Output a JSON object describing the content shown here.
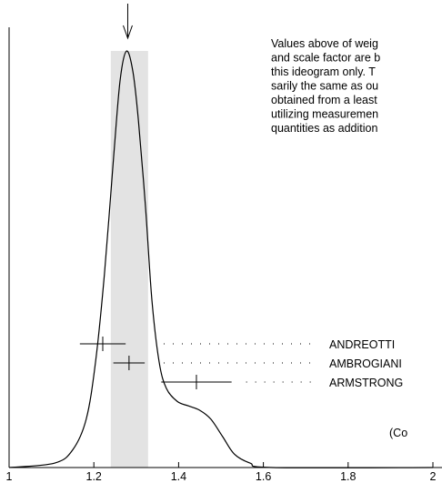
{
  "chart_data": {
    "type": "ideogram",
    "xlim": [
      1,
      2
    ],
    "xticks": [
      1,
      1.2,
      1.4,
      1.6,
      1.8,
      2
    ],
    "ylim": [
      0,
      1
    ],
    "band": [
      1.24,
      1.328
    ],
    "arrow_x": 1.28,
    "curve": {
      "x": [
        1.0,
        1.107,
        1.15,
        1.182,
        1.204,
        1.225,
        1.247,
        1.262,
        1.277,
        1.292,
        1.305,
        1.322,
        1.337,
        1.354,
        1.371,
        1.397,
        1.423,
        1.45,
        1.476,
        1.504,
        1.532,
        1.569,
        1.622,
        2.0
      ],
      "y": [
        0,
        0.01,
        0.04,
        0.11,
        0.24,
        0.44,
        0.71,
        0.88,
        0.946,
        0.9,
        0.79,
        0.59,
        0.38,
        0.24,
        0.18,
        0.15,
        0.14,
        0.13,
        0.11,
        0.07,
        0.03,
        0.01,
        0,
        0
      ]
    },
    "measurements": [
      {
        "name": "ANDREOTTI",
        "value": 1.221,
        "error": 0.054
      },
      {
        "name": "AMBROGIANI",
        "value": 1.283,
        "error": 0.037
      },
      {
        "name": "ARMSTRONG",
        "value": 1.442,
        "error": 0.083
      }
    ],
    "note": [
      "Values above of weig",
      "and scale factor are b",
      "this ideogram only.  T",
      "sarily the same as ou",
      "obtained from a least",
      "utilizing measuremen",
      "quantities as addition"
    ],
    "units_label": "(Co"
  }
}
